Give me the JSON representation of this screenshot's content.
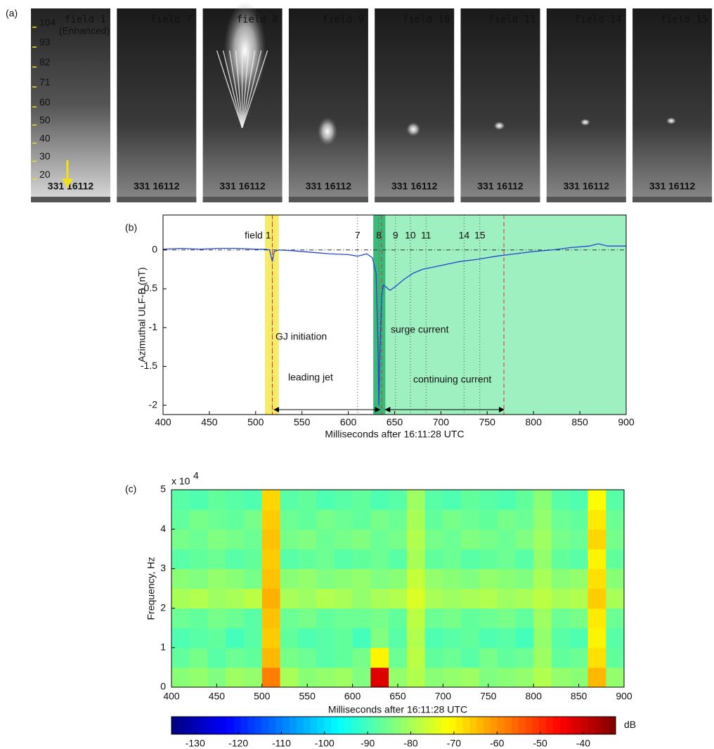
{
  "chart_data": [
    {
      "type": "image-strip",
      "label": "(a)",
      "frames": [
        "field 1",
        "field 7",
        "field 8",
        "field 9",
        "field 10",
        "field 11",
        "field 14",
        "field 15"
      ],
      "enhanced_note": "(Enhanced)",
      "stamp": "331   16112",
      "scale_ticks": [
        104,
        93,
        82,
        71,
        60,
        50,
        40,
        30,
        20
      ],
      "ylim": [
        5,
        112
      ],
      "scale_color": "#f0e020"
    },
    {
      "type": "line",
      "label": "(b)",
      "ylabel": "Azimuthal ULF-B (nT)",
      "xlabel": "Milliseconds after 16:11:28 UTC",
      "x": [
        400,
        420,
        440,
        460,
        480,
        500,
        510,
        515,
        518,
        520,
        525,
        540,
        560,
        580,
        600,
        610,
        620,
        626,
        630,
        632,
        633,
        634,
        636,
        638,
        640,
        645,
        650,
        660,
        670,
        680,
        700,
        720,
        740,
        760,
        780,
        800,
        820,
        840,
        860,
        870,
        880,
        900
      ],
      "series": [
        {
          "color": "#2444d4",
          "values": [
            0.01,
            0.02,
            0.01,
            0.02,
            0.02,
            0.01,
            0.01,
            0.0,
            -0.15,
            -0.02,
            0.0,
            -0.01,
            -0.03,
            -0.05,
            -0.06,
            -0.08,
            -0.05,
            -0.1,
            -0.3,
            -1.2,
            -2.0,
            -1.4,
            -0.6,
            -0.45,
            -0.47,
            -0.52,
            -0.48,
            -0.38,
            -0.3,
            -0.25,
            -0.2,
            -0.15,
            -0.12,
            -0.08,
            -0.05,
            -0.02,
            0.0,
            0.03,
            0.05,
            0.08,
            0.05,
            0.05
          ]
        }
      ],
      "xlim": [
        400,
        900
      ],
      "xticks": [
        400,
        450,
        500,
        550,
        600,
        650,
        700,
        750,
        800,
        850,
        900
      ],
      "ylim": [
        -2.12,
        0.45
      ],
      "yticks": [
        -2,
        -1.5,
        -1,
        -0.5,
        0
      ],
      "hline": 0,
      "spans": [
        {
          "x": [
            510,
            525
          ],
          "color": "#f7ec6a"
        },
        {
          "x": [
            627,
            900
          ],
          "color": "#9ef0c0"
        },
        {
          "x": [
            627,
            640
          ],
          "color": "#3cb878"
        }
      ],
      "markers": [
        {
          "x": 518,
          "label": "field 1"
        },
        {
          "x": 610,
          "label": "7"
        },
        {
          "x": 633,
          "label": "8"
        },
        {
          "x": 651,
          "label": "9"
        },
        {
          "x": 667,
          "label": "10"
        },
        {
          "x": 684,
          "label": "11"
        },
        {
          "x": 725,
          "label": "14"
        },
        {
          "x": 742,
          "label": "15"
        }
      ],
      "ref_lines": {
        "color": "#e03030",
        "x": [
          518,
          636,
          768
        ]
      },
      "annotations": [
        "GJ initiation",
        "surge current",
        "leading jet",
        "continuing current"
      ],
      "arrows": [
        [
          520,
          634
        ],
        [
          640,
          768
        ]
      ]
    },
    {
      "type": "heatmap",
      "label": "(c)",
      "ylabel": "Frequency, Hz",
      "xlabel": "Milliseconds after 16:11:28 UTC",
      "scale_label": "x 10",
      "scale_exponent": "4",
      "x": [
        410,
        430,
        450,
        470,
        490,
        510,
        530,
        550,
        570,
        590,
        610,
        630,
        650,
        670,
        690,
        710,
        730,
        750,
        770,
        790,
        810,
        830,
        850,
        870,
        890
      ],
      "y": [
        2500,
        7500,
        12500,
        17500,
        22500,
        27500,
        32500,
        37500,
        42500,
        47500
      ],
      "z": [
        [
          -83,
          -82,
          -84,
          -81,
          -82,
          -58,
          -80,
          -83,
          -82,
          -81,
          -84,
          -42,
          -82,
          -79,
          -83,
          -82,
          -81,
          -84,
          -83,
          -82,
          -79,
          -82,
          -83,
          -64,
          -82
        ],
        [
          -87,
          -85,
          -88,
          -86,
          -87,
          -64,
          -85,
          -86,
          -88,
          -87,
          -85,
          -70,
          -86,
          -78,
          -87,
          -86,
          -88,
          -85,
          -87,
          -86,
          -81,
          -87,
          -86,
          -68,
          -87
        ],
        [
          -89,
          -88,
          -87,
          -90,
          -88,
          -66,
          -87,
          -89,
          -88,
          -87,
          -90,
          -84,
          -88,
          -79,
          -89,
          -88,
          -87,
          -89,
          -88,
          -90,
          -82,
          -88,
          -89,
          -70,
          -88
        ],
        [
          -86,
          -87,
          -85,
          -86,
          -88,
          -65,
          -86,
          -85,
          -87,
          -86,
          -86,
          -85,
          -87,
          -78,
          -86,
          -85,
          -87,
          -86,
          -85,
          -87,
          -81,
          -86,
          -85,
          -69,
          -86
        ],
        [
          -80,
          -79,
          -81,
          -80,
          -78,
          -63,
          -80,
          -81,
          -79,
          -80,
          -82,
          -80,
          -79,
          -75,
          -80,
          -81,
          -80,
          -79,
          -81,
          -80,
          -78,
          -80,
          -79,
          -66,
          -80
        ],
        [
          -83,
          -84,
          -82,
          -83,
          -85,
          -65,
          -83,
          -82,
          -84,
          -83,
          -82,
          -84,
          -83,
          -77,
          -82,
          -83,
          -84,
          -82,
          -83,
          -84,
          -80,
          -83,
          -82,
          -68,
          -83
        ],
        [
          -88,
          -87,
          -86,
          -88,
          -87,
          -66,
          -88,
          -87,
          -86,
          -88,
          -87,
          -86,
          -88,
          -80,
          -87,
          -86,
          -88,
          -87,
          -86,
          -88,
          -82,
          -87,
          -88,
          -70,
          -87
        ],
        [
          -85,
          -86,
          -84,
          -85,
          -86,
          -65,
          -85,
          -84,
          -86,
          -85,
          -84,
          -86,
          -85,
          -79,
          -85,
          -86,
          -84,
          -85,
          -86,
          -84,
          -81,
          -85,
          -86,
          -67,
          -85
        ],
        [
          -87,
          -85,
          -86,
          -87,
          -85,
          -66,
          -86,
          -87,
          -85,
          -86,
          -87,
          -85,
          -86,
          -80,
          -87,
          -85,
          -86,
          -87,
          -85,
          -86,
          -82,
          -86,
          -87,
          -69,
          -86
        ],
        [
          -88,
          -89,
          -87,
          -88,
          -89,
          -67,
          -88,
          -87,
          -89,
          -88,
          -87,
          -89,
          -88,
          -81,
          -88,
          -89,
          -87,
          -88,
          -89,
          -87,
          -83,
          -88,
          -89,
          -71,
          -88
        ]
      ],
      "xlim": [
        400,
        900
      ],
      "xticks": [
        400,
        450,
        500,
        550,
        600,
        650,
        700,
        750,
        800,
        850,
        900
      ],
      "ylim": [
        0,
        50000
      ],
      "yticks": [
        0,
        {
          "value": 10000,
          "label": "1"
        },
        {
          "value": 20000,
          "label": "2"
        },
        {
          "value": 30000,
          "label": "3"
        },
        {
          "value": 40000,
          "label": "4"
        },
        {
          "value": 50000,
          "label": "5"
        }
      ],
      "colormap": "jet",
      "clim": [
        -135.5,
        -32.5
      ],
      "cticks": [
        -130,
        -120,
        -110,
        -100,
        -90,
        -80,
        -70,
        -60,
        -50,
        -40
      ],
      "clabel": "dB"
    }
  ]
}
